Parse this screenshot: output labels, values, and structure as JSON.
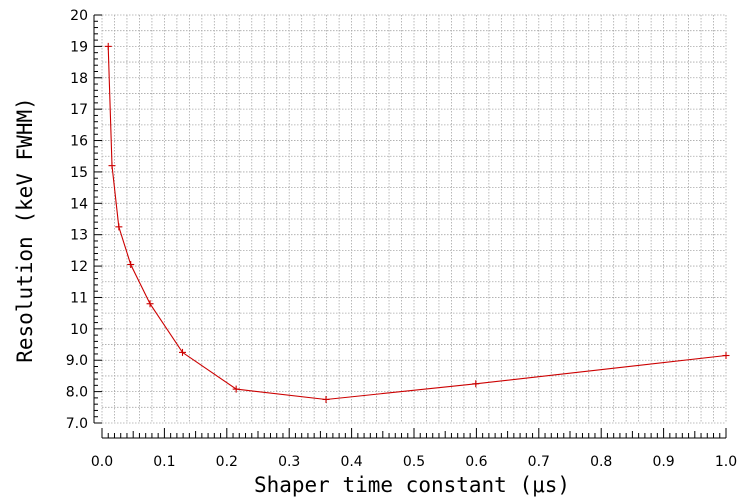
{
  "chart_data": {
    "type": "line",
    "title": "",
    "xlabel": "Shaper time constant (μs)",
    "ylabel": "Resolution (keV FWHM)",
    "xlim": [
      0.0,
      1.0
    ],
    "ylim": [
      7.0,
      20.0
    ],
    "x_ticks": [
      "0.0",
      "0.1",
      "0.2",
      "0.3",
      "0.4",
      "0.5",
      "0.6",
      "0.7",
      "0.8",
      "0.9",
      "1.0"
    ],
    "y_ticks": [
      "7.0",
      "8.0",
      "9.0",
      "10",
      "11",
      "12",
      "13",
      "14",
      "15",
      "16",
      "17",
      "18",
      "19",
      "20"
    ],
    "grid": true,
    "legend": "none",
    "series": [
      {
        "color": "#cc0000",
        "marker": "plus",
        "points": [
          {
            "x": 0.01,
            "y": 19.0
          },
          {
            "x": 0.016,
            "y": 15.2
          },
          {
            "x": 0.027,
            "y": 13.25
          },
          {
            "x": 0.046,
            "y": 12.05
          },
          {
            "x": 0.077,
            "y": 10.8
          },
          {
            "x": 0.129,
            "y": 9.25
          },
          {
            "x": 0.215,
            "y": 8.08
          },
          {
            "x": 0.359,
            "y": 7.75
          },
          {
            "x": 0.599,
            "y": 8.25
          },
          {
            "x": 1.0,
            "y": 9.15
          }
        ]
      }
    ]
  }
}
